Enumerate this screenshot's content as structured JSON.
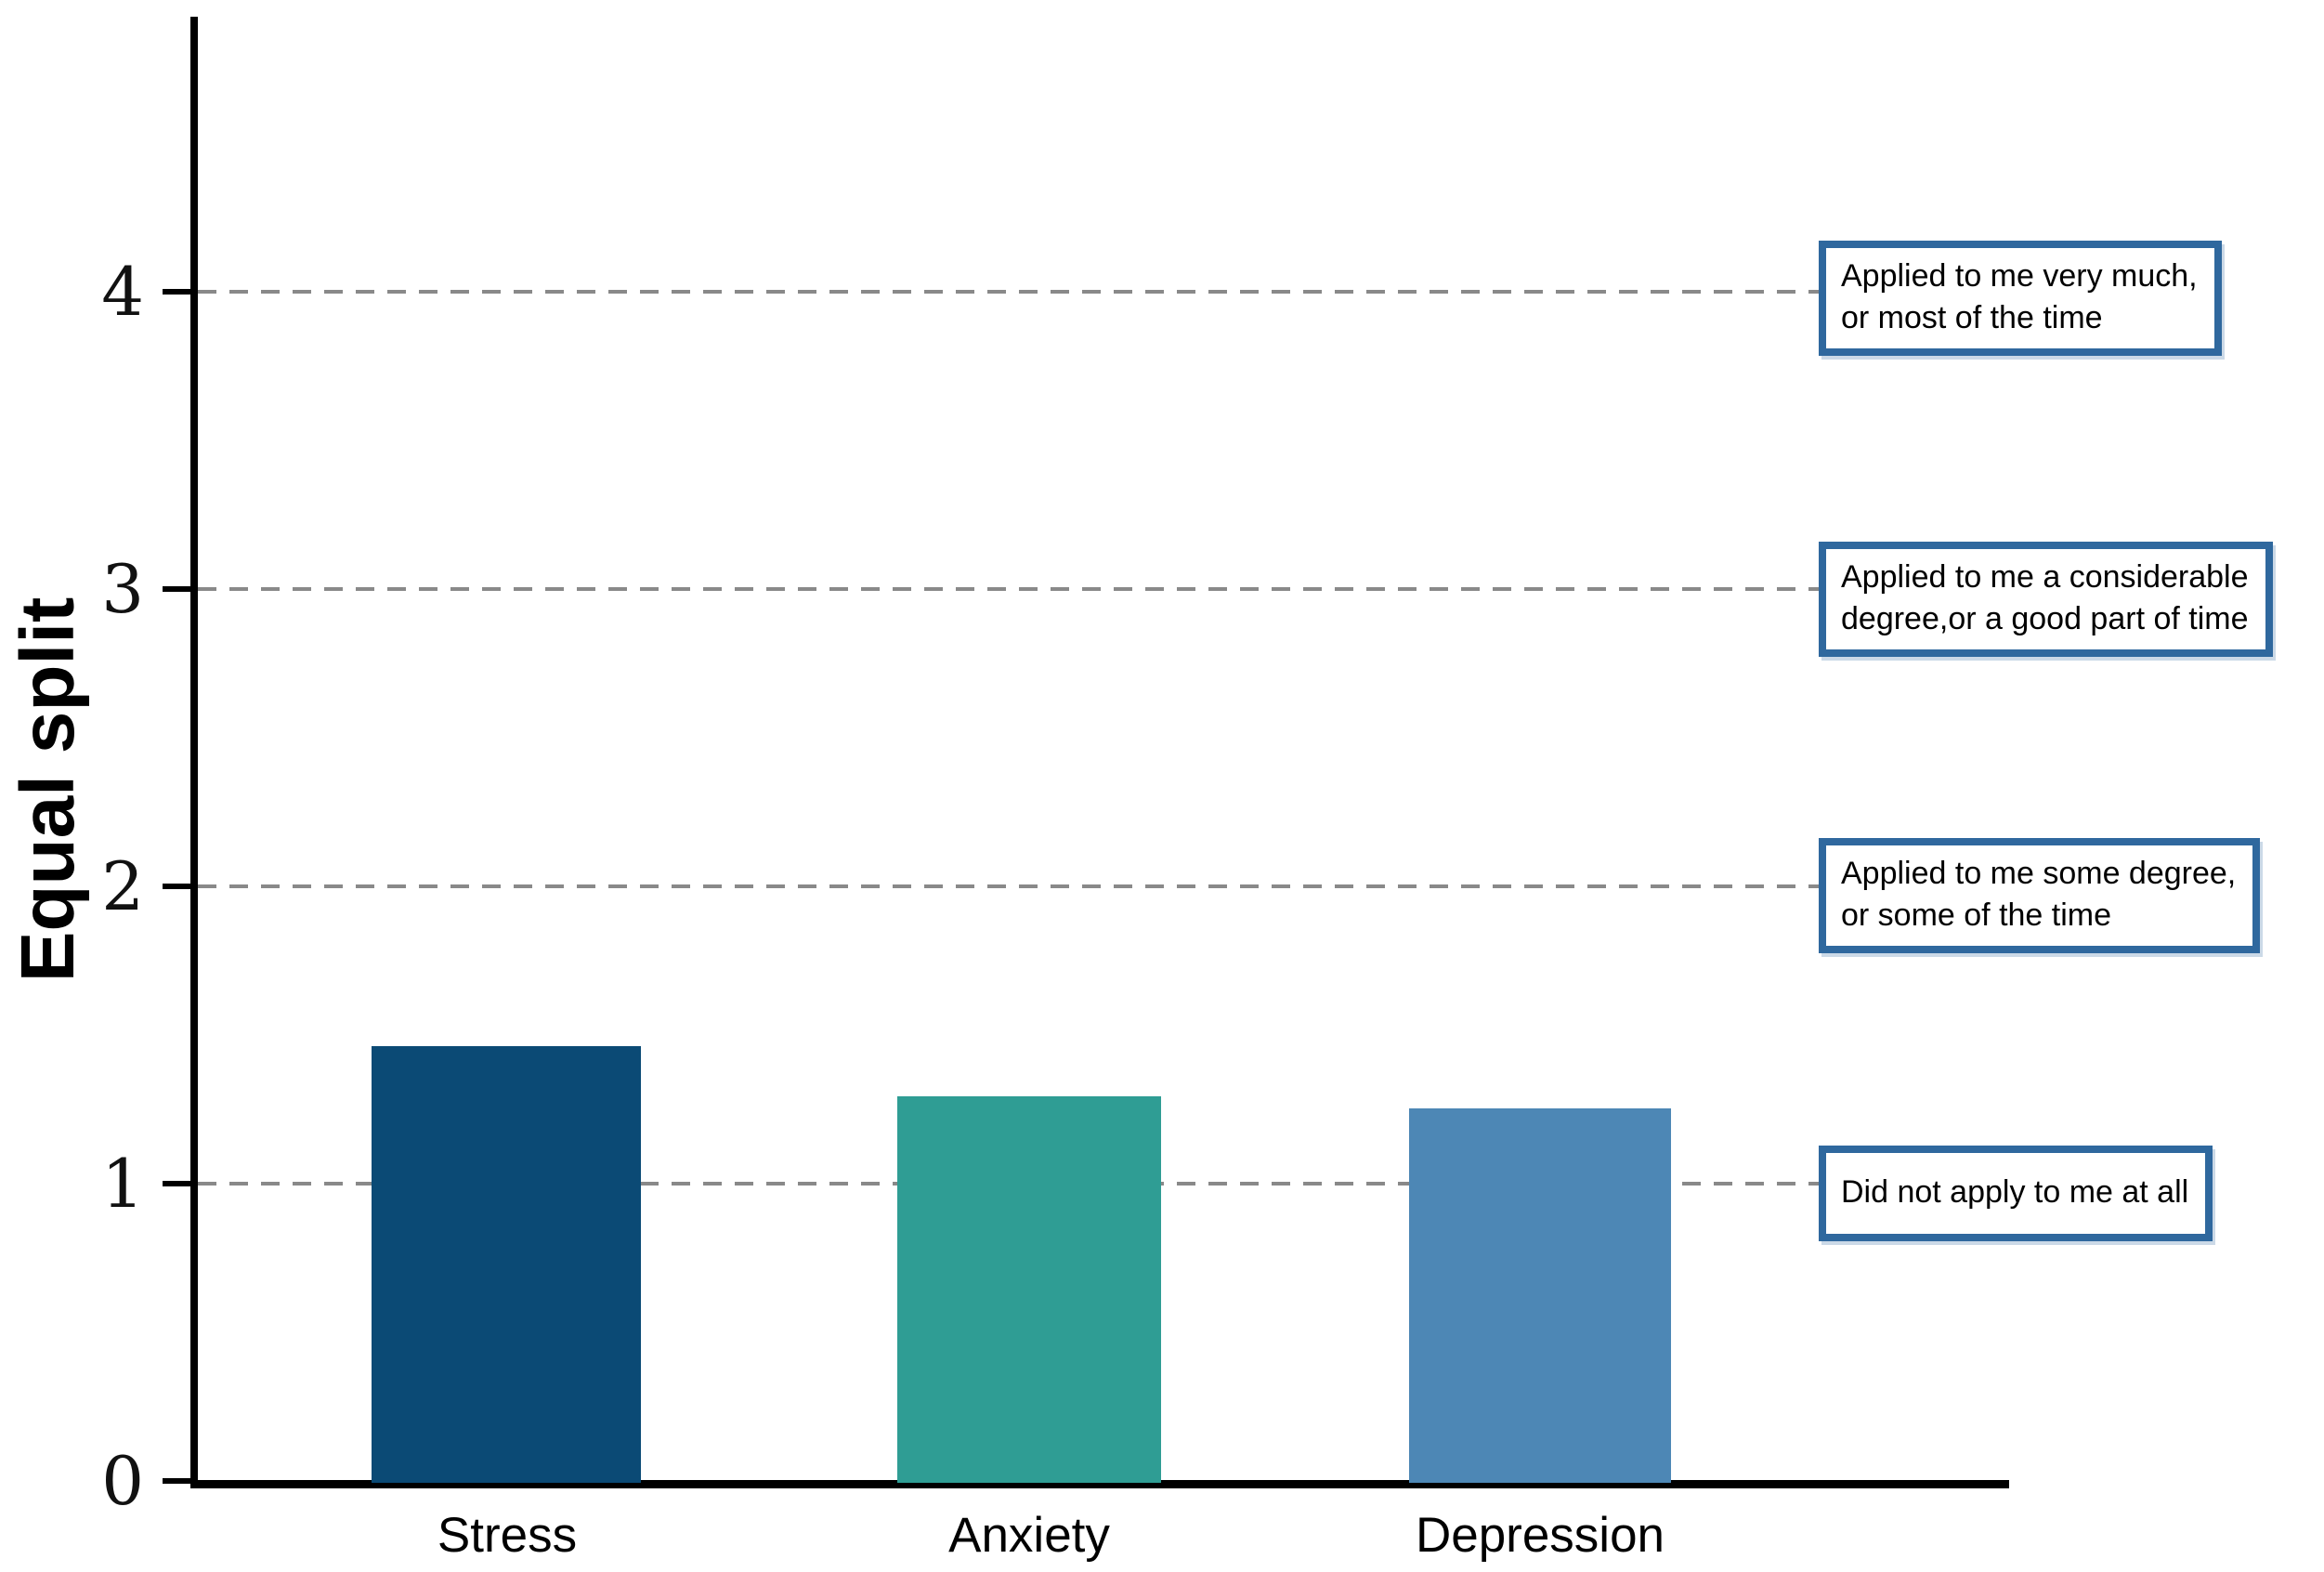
{
  "chart_data": {
    "type": "bar",
    "title": "",
    "categories": [
      "Stress",
      "Anxiety",
      "Depression"
    ],
    "values": [
      1.47,
      1.3,
      1.26
    ],
    "bar_colors": [
      "#0b4a75",
      "#2f9d94",
      "#4d87b5"
    ],
    "xlabel": "",
    "ylabel": "Equal split",
    "ylim": [
      0,
      4.94
    ],
    "yticks": [
      0,
      1,
      2,
      3,
      4
    ],
    "ytick_labels": [
      "0",
      "1",
      "2",
      "3",
      "4"
    ],
    "grid": {
      "axis": "y",
      "style": "dashed",
      "color": "#898989",
      "at": [
        1,
        2,
        3,
        4
      ]
    },
    "legend": "none",
    "annotation_border_color": "#2f689e",
    "annotations": [
      {
        "at_value": 4,
        "line1": "Applied to me very much,",
        "line2": "or most of the time"
      },
      {
        "at_value": 3,
        "line1": "Applied to me a considerable",
        "line2": "degree,or a good part of time"
      },
      {
        "at_value": 2,
        "line1": "Applied to me some degree,",
        "line2": "or some of the time"
      },
      {
        "at_value": 1,
        "line1": "Did not apply to me at all",
        "line2": ""
      }
    ]
  }
}
